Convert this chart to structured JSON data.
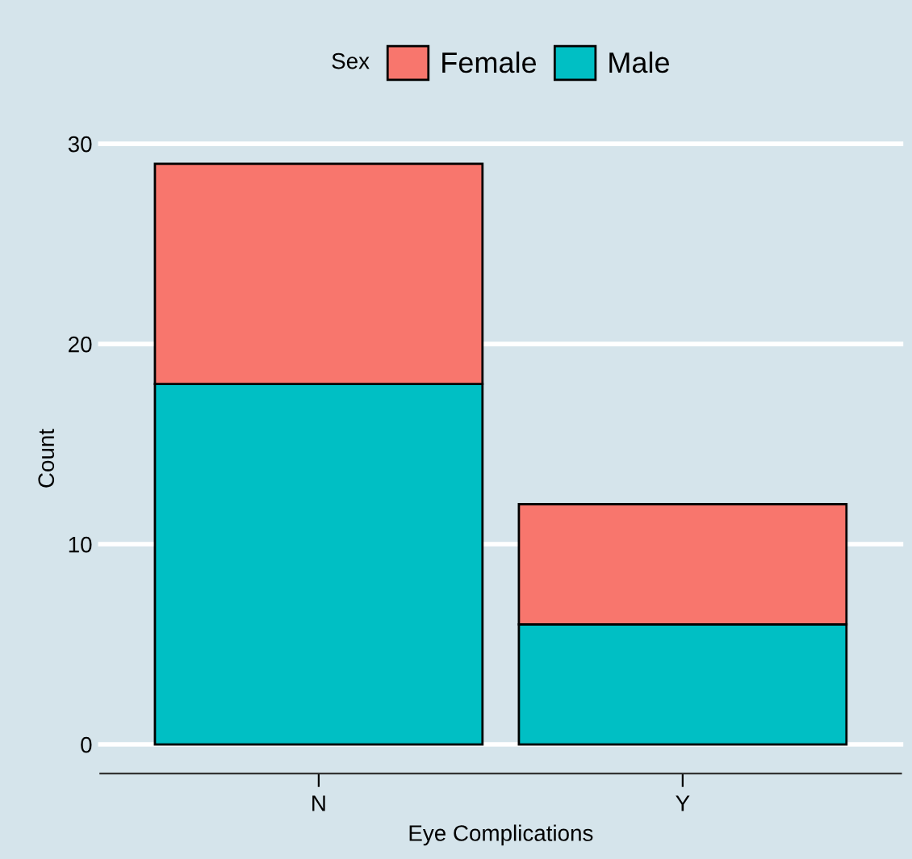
{
  "chart_data": {
    "type": "bar",
    "stacked": true,
    "xlabel": "Eye Complications",
    "ylabel": "Count",
    "legend_title": "Sex",
    "categories": [
      "N",
      "Y"
    ],
    "series": [
      {
        "name": "Male",
        "color": "#00bfc4",
        "values": [
          18,
          6
        ]
      },
      {
        "name": "Female",
        "color": "#f8766d",
        "values": [
          11,
          6
        ]
      }
    ],
    "ylim": [
      -1.45,
      30
    ],
    "yticks": [
      0,
      10,
      20,
      30
    ],
    "grid": "y",
    "legend": "top"
  }
}
